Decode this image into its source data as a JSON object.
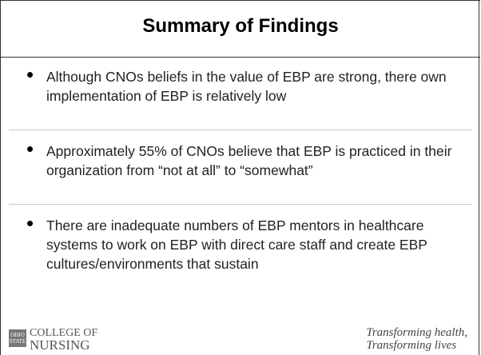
{
  "header": {
    "title": "Summary of Findings"
  },
  "bullets": [
    "Although CNOs beliefs in the value of EBP are strong, there own implementation of EBP is relatively low",
    "Approximately 55% of CNOs believe that EBP is practiced in their organization from “not at all” to “somewhat”",
    "There are inadequate numbers of EBP mentors in healthcare systems to work on EBP with direct care staff and create EBP cultures/environments that sustain"
  ],
  "footer": {
    "logo": "OHIO STATE",
    "college": [
      "COLLEGE OF",
      "NURSING"
    ],
    "tagline": [
      "Transforming health,",
      "Transforming lives"
    ]
  }
}
